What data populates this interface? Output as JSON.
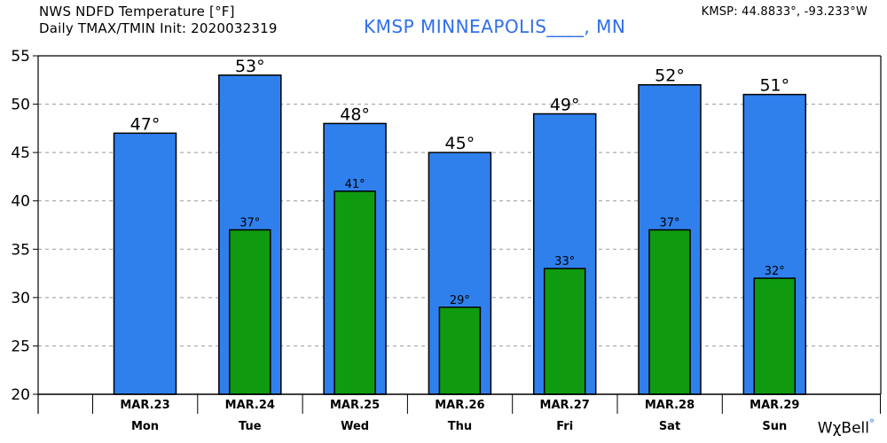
{
  "header": {
    "line1": "NWS NDFD Temperature [°F]",
    "line2": "Daily TMAX/TMIN Init: 2020032319",
    "station": "KMSP MINNEAPOLIS____, MN",
    "coords": "KMSP: 44.8833°, -93.233°W"
  },
  "brand": {
    "name": "WχBell",
    "dot": "°"
  },
  "colors": {
    "tmax": "#2F80ED",
    "tmin": "#0F9A0F",
    "grid": "#999999",
    "station": "#2F6FE8"
  },
  "chart_data": {
    "type": "bar",
    "categories": [
      "MAR.23",
      "MAR.24",
      "MAR.25",
      "MAR.26",
      "MAR.27",
      "MAR.28",
      "MAR.29"
    ],
    "weekdays": [
      "Mon",
      "Tue",
      "Wed",
      "Thu",
      "Fri",
      "Sat",
      "Sun"
    ],
    "series": [
      {
        "name": "",
        "key": "tmax",
        "values": [
          47,
          53,
          48,
          45,
          49,
          52,
          51
        ],
        "labels": [
          "47°",
          "53°",
          "48°",
          "45°",
          "49°",
          "52°",
          "51°"
        ]
      },
      {
        "name": "",
        "key": "tmin",
        "values": [
          null,
          37,
          41,
          29,
          33,
          37,
          32
        ],
        "labels": [
          "",
          "37°",
          "41°",
          "29°",
          "33°",
          "37°",
          "32°"
        ]
      }
    ],
    "ylim": [
      20,
      55
    ],
    "yticks": [
      "20",
      "25",
      "30",
      "35",
      "40",
      "45",
      "50",
      "55"
    ],
    "grid": true,
    "title": "",
    "xlabel": "",
    "ylabel": ""
  }
}
